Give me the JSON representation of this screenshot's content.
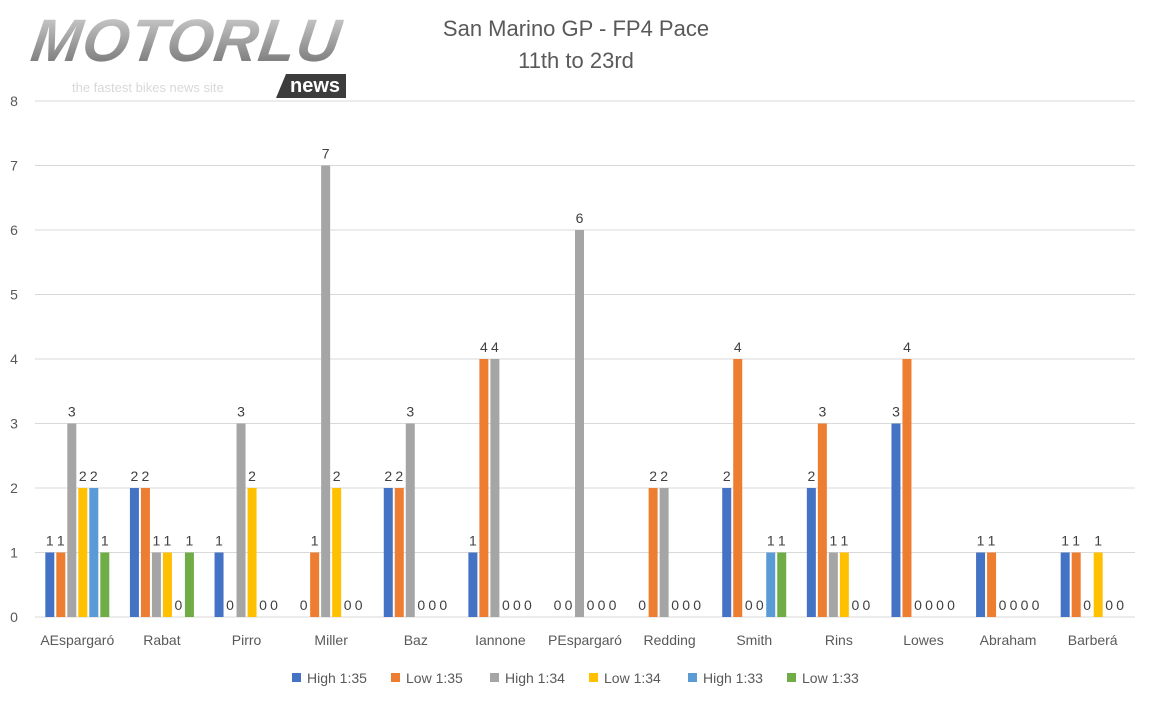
{
  "logo": {
    "name": "MOTORLU",
    "badge": "news",
    "tagline": "the fastest bikes news site"
  },
  "chart_data": {
    "type": "bar",
    "title": "San Marino GP - FP4 Pace",
    "subtitle": "11th to 23rd",
    "xlabel": "",
    "ylabel": "",
    "ylim": [
      0,
      8
    ],
    "yticks": [
      0,
      1,
      2,
      3,
      4,
      5,
      6,
      7,
      8
    ],
    "grid": true,
    "legend": "bottom",
    "data_labels": true,
    "categories": [
      "AEspargaró",
      "Rabat",
      "Pirro",
      "Miller",
      "Baz",
      "Iannone",
      "PEspargaró",
      "Redding",
      "Smith",
      "Rins",
      "Lowes",
      "Abraham",
      "Barberá"
    ],
    "series": [
      {
        "name": "High 1:35",
        "color": "#4472C4",
        "values": [
          1,
          2,
          1,
          0,
          2,
          1,
          0,
          0,
          2,
          2,
          3,
          1,
          1
        ]
      },
      {
        "name": "Low 1:35",
        "color": "#ED7D31",
        "values": [
          1,
          2,
          0,
          1,
          2,
          4,
          0,
          2,
          4,
          3,
          4,
          1,
          1
        ]
      },
      {
        "name": "High 1:34",
        "color": "#A5A5A5",
        "values": [
          3,
          1,
          3,
          7,
          3,
          4,
          6,
          2,
          0,
          1,
          0,
          0,
          0
        ]
      },
      {
        "name": "Low 1:34",
        "color": "#FFC000",
        "values": [
          2,
          1,
          2,
          2,
          0,
          0,
          0,
          0,
          0,
          1,
          0,
          0,
          1
        ]
      },
      {
        "name": "High 1:33",
        "color": "#5B9BD5",
        "values": [
          2,
          0,
          0,
          0,
          0,
          0,
          0,
          0,
          1,
          0,
          0,
          0,
          0
        ]
      },
      {
        "name": "Low 1:33",
        "color": "#70AD47",
        "values": [
          1,
          1,
          0,
          0,
          0,
          0,
          0,
          0,
          1,
          0,
          0,
          0,
          0
        ]
      }
    ]
  }
}
